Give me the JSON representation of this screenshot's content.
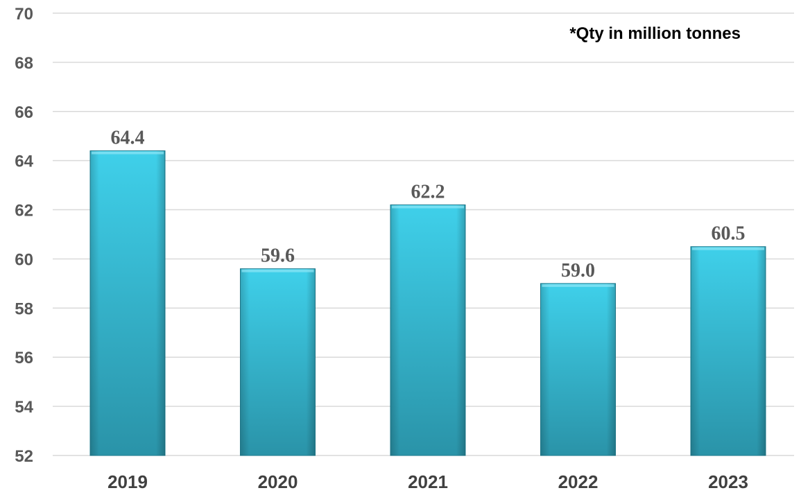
{
  "chart_data": {
    "type": "bar",
    "categories": [
      "2019",
      "2020",
      "2021",
      "2022",
      "2023"
    ],
    "values": [
      64.4,
      59.6,
      62.2,
      59.0,
      60.5
    ],
    "data_labels": [
      "64.4",
      "59.6",
      "62.2",
      "59.0",
      "60.5"
    ],
    "title": "",
    "xlabel": "",
    "ylabel": "",
    "ylim": [
      52,
      70
    ],
    "yticks": [
      52,
      54,
      56,
      58,
      60,
      62,
      64,
      66,
      68,
      70
    ],
    "annotation": "*Qty in million tonnes",
    "grid": true,
    "legend": "none",
    "colors": {
      "bar_top": "#3fd0ea",
      "bar_bottom": "#2a93a8",
      "bar_edge": "#1f7f93",
      "grid": "#d9d9d9",
      "tick_text": "#595959",
      "category_text": "#404040",
      "label_text": "#595959"
    }
  }
}
